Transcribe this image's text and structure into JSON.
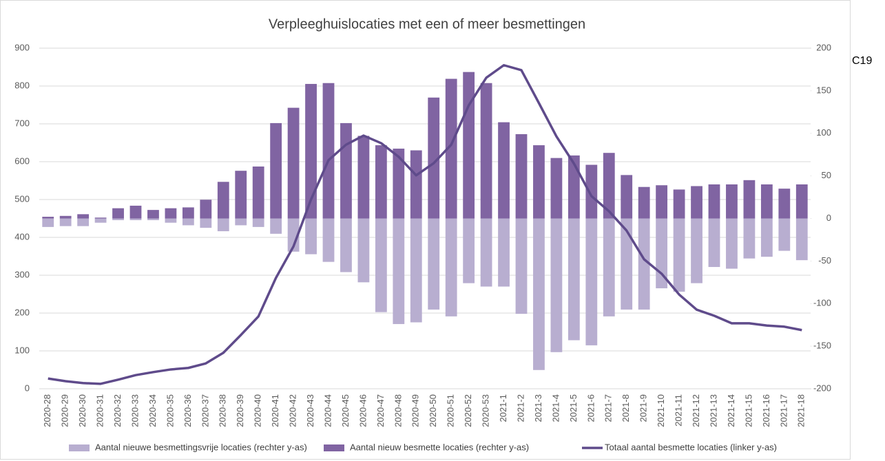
{
  "chart_data": {
    "type": "bar-line",
    "title": "Verpleeghuislocaties met een of meer besmettingen",
    "annotation": "C19",
    "categories": [
      "2020-28",
      "2020-29",
      "2020-30",
      "2020-31",
      "2020-32",
      "2020-33",
      "2020-34",
      "2020-35",
      "2020-36",
      "2020-37",
      "2020-38",
      "2020-39",
      "2020-40",
      "2020-41",
      "2020-42",
      "2020-43",
      "2020-44",
      "2020-45",
      "2020-46",
      "2020-47",
      "2020-48",
      "2020-49",
      "2020-50",
      "2020-51",
      "2020-52",
      "2020-53",
      "2021-1",
      "2021-2",
      "2021-3",
      "2021-4",
      "2021-5",
      "2021-6",
      "2021-7",
      "2021-8",
      "2021-9",
      "2021-10",
      "2021-11",
      "2021-12",
      "2021-13",
      "2021-14",
      "2021-15",
      "2021-16",
      "2021-17",
      "2021-18"
    ],
    "series": [
      {
        "name": "Aantal nieuwe besmettingsvrije locaties (rechter y-as)",
        "color": "#b8aed0",
        "kind": "bar",
        "axis": "y2",
        "values": [
          -10,
          -9,
          -9,
          -5,
          -2,
          -2,
          -2,
          -5,
          -8,
          -11,
          -15,
          -8,
          -10,
          -18,
          -39,
          -42,
          -51,
          -63,
          -75,
          -110,
          -124,
          -122,
          -107,
          -115,
          -76,
          -80,
          -80,
          -112,
          -178,
          -157,
          -143,
          -149,
          -115,
          -107,
          -107,
          -82,
          -86,
          -76,
          -57,
          -59,
          -47,
          -45,
          -38,
          -49
        ]
      },
      {
        "name": "Aantal nieuw besmette locaties (rechter y-as)",
        "color": "#8064a2",
        "kind": "bar",
        "axis": "y2",
        "values": [
          2,
          3,
          5,
          1,
          12,
          15,
          10,
          12,
          13,
          22,
          43,
          56,
          61,
          112,
          130,
          158,
          159,
          112,
          97,
          86,
          82,
          80,
          142,
          164,
          172,
          159,
          113,
          99,
          86,
          71,
          74,
          63,
          77,
          51,
          37,
          39,
          34,
          38,
          40,
          40,
          45,
          40,
          35,
          40
        ]
      },
      {
        "name": "Totaal aantal besmette locaties (linker y-as)",
        "color": "#5f4b8b",
        "kind": "line",
        "axis": "y",
        "values": [
          27,
          20,
          15,
          13,
          24,
          36,
          44,
          51,
          55,
          67,
          95,
          142,
          191,
          293,
          376,
          500,
          604,
          645,
          669,
          649,
          613,
          564,
          596,
          645,
          749,
          822,
          855,
          842,
          755,
          667,
          595,
          509,
          469,
          418,
          342,
          304,
          249,
          209,
          193,
          173,
          173,
          167,
          164,
          155
        ]
      }
    ],
    "ylim": [
      0,
      900
    ],
    "yticks": [
      0,
      100,
      200,
      300,
      400,
      500,
      600,
      700,
      800,
      900
    ],
    "y2lim": [
      -200,
      200
    ],
    "y2ticks": [
      -200,
      -150,
      -100,
      -50,
      0,
      50,
      100,
      150,
      200
    ],
    "grid": true,
    "legend": "bottom"
  }
}
